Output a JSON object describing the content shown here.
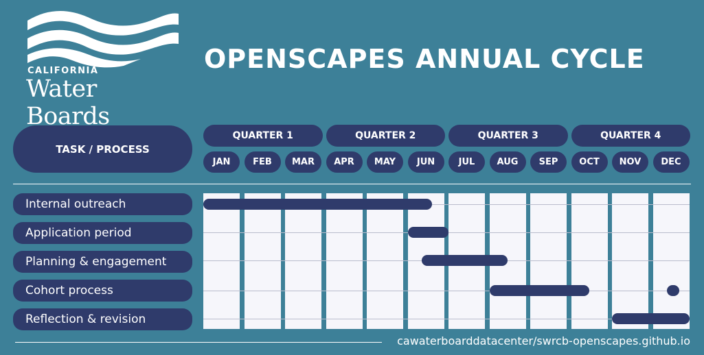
{
  "title": "OPENSCAPES ANNUAL CYCLE",
  "logo": {
    "line1": "CALIFORNIA",
    "line2": "Water Boards",
    "icon": "waves-logo"
  },
  "header": {
    "task_label": "TASK / PROCESS"
  },
  "quarters": [
    "QUARTER 1",
    "QUARTER 2",
    "QUARTER 3",
    "QUARTER 4"
  ],
  "months": [
    "JAN",
    "FEB",
    "MAR",
    "APR",
    "MAY",
    "JUN",
    "JUL",
    "AUG",
    "SEP",
    "OCT",
    "NOV",
    "DEC"
  ],
  "tasks": [
    "Internal outreach",
    "Application period",
    "Planning & engagement",
    "Cohort process",
    "Reflection & revision"
  ],
  "schedule": [
    {
      "task": "Internal outreach",
      "segments": [
        {
          "start": 0.0,
          "end": 5.6
        }
      ]
    },
    {
      "task": "Application period",
      "segments": [
        {
          "start": 5.0,
          "end": 6.0
        }
      ]
    },
    {
      "task": "Planning & engagement",
      "segments": [
        {
          "start": 5.35,
          "end": 7.45
        }
      ]
    },
    {
      "task": "Cohort process",
      "segments": [
        {
          "start": 7.0,
          "end": 9.45
        },
        {
          "start": 11.35,
          "end": 11.65
        }
      ]
    },
    {
      "task": "Reflection & revision",
      "segments": [
        {
          "start": 10.0,
          "end": 12.0
        }
      ]
    }
  ],
  "colors": {
    "background": "#3d8098",
    "navy": "#2f3b6b",
    "grid": "#f6f6fb"
  },
  "footer": {
    "url": "cawaterboarddatacenter/swrcb-openscapes.github.io"
  }
}
